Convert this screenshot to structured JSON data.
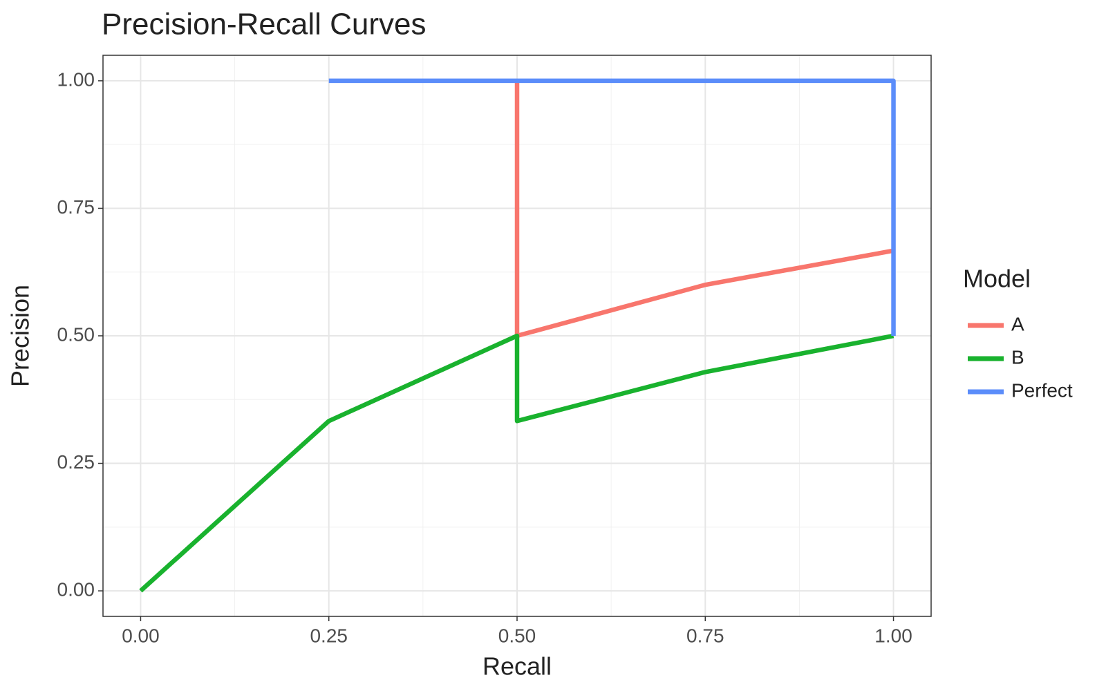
{
  "chart_data": {
    "type": "line",
    "title": "Precision-Recall Curves",
    "x_label": "Recall",
    "y_label": "Precision",
    "legend_title": "Model",
    "legend": "right",
    "grid": true,
    "xlim": [
      -0.05,
      1.05
    ],
    "ylim": [
      -0.05,
      1.05
    ],
    "xticks": [
      {
        "value": 0,
        "label": "0.00"
      },
      {
        "value": 0.25,
        "label": "0.25"
      },
      {
        "value": 0.5,
        "label": "0.50"
      },
      {
        "value": 0.75,
        "label": "0.75"
      },
      {
        "value": 1,
        "label": "1.00"
      }
    ],
    "yticks": [
      {
        "value": 0,
        "label": "0.00"
      },
      {
        "value": 0.25,
        "label": "0.25"
      },
      {
        "value": 0.5,
        "label": "0.50"
      },
      {
        "value": 0.75,
        "label": "0.75"
      },
      {
        "value": 1,
        "label": "1.00"
      }
    ],
    "xminor": [
      0.125,
      0.375,
      0.625,
      0.875
    ],
    "yminor": [
      0.125,
      0.375,
      0.625,
      0.875
    ],
    "series": [
      {
        "name": "A",
        "color": "#F8766D",
        "x": [
          0.5,
          0.5,
          0.75,
          1.0
        ],
        "values": [
          1.0,
          0.5,
          0.6,
          0.667
        ]
      },
      {
        "name": "B",
        "color": "#19B22E",
        "x": [
          0,
          0.25,
          0.5,
          0.5,
          0.75,
          1.0
        ],
        "values": [
          0,
          0.333,
          0.5,
          0.333,
          0.429,
          0.5
        ]
      },
      {
        "name": "Perfect",
        "color": "#5B8DFA",
        "x": [
          0.25,
          1.0,
          1.0
        ],
        "values": [
          1.0,
          1.0,
          0.5
        ]
      }
    ]
  }
}
